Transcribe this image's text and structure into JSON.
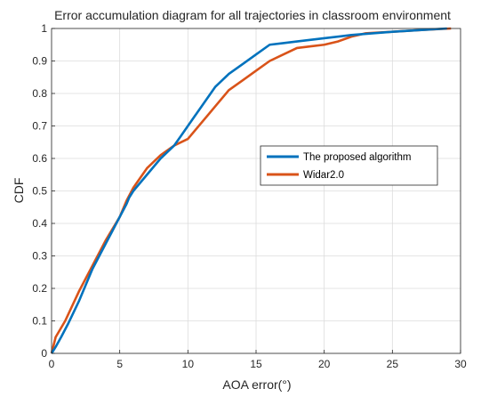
{
  "chart_data": {
    "type": "line",
    "title": "Error accumulation diagram for all trajectories in classroom environment",
    "xlabel": "AOA error(°)",
    "ylabel": "CDF",
    "xlim": [
      0,
      30
    ],
    "ylim": [
      0,
      1
    ],
    "xticks": [
      "0",
      "5",
      "10",
      "15",
      "20",
      "25",
      "30"
    ],
    "yticks": [
      "0",
      "0.1",
      "0.2",
      "0.3",
      "0.4",
      "0.5",
      "0.6",
      "0.7",
      "0.8",
      "0.9",
      "1"
    ],
    "grid": true,
    "legend_position": "center-right",
    "series": [
      {
        "name": "The proposed algorithm",
        "color": "#0072BD",
        "x": [
          0,
          0.3,
          0.7,
          1.2,
          2.0,
          3.0,
          4.0,
          5.0,
          5.5,
          5.7,
          6.0,
          7.0,
          8.0,
          9.0,
          9.5,
          10.0,
          10.5,
          11.0,
          12.0,
          13.0,
          14.0,
          15.0,
          16.0,
          17.0,
          18.0,
          20.0,
          22.0,
          25.0,
          27.0,
          29.0
        ],
        "y": [
          0,
          0.02,
          0.05,
          0.09,
          0.16,
          0.26,
          0.34,
          0.42,
          0.46,
          0.48,
          0.5,
          0.55,
          0.6,
          0.64,
          0.67,
          0.7,
          0.73,
          0.76,
          0.82,
          0.86,
          0.89,
          0.92,
          0.95,
          0.955,
          0.96,
          0.97,
          0.98,
          0.99,
          0.995,
          1.0
        ]
      },
      {
        "name": "Widar2.0",
        "color": "#D95319",
        "x": [
          0,
          0.3,
          1.0,
          2.0,
          3.0,
          4.0,
          5.0,
          5.5,
          6.0,
          7.0,
          8.0,
          9.0,
          10.0,
          11.0,
          12.0,
          13.0,
          14.0,
          15.0,
          16.0,
          17.0,
          18.0,
          19.0,
          20.0,
          21.0,
          22.0,
          22.5,
          23.0,
          25.0,
          27.0,
          29.3
        ],
        "y": [
          0,
          0.05,
          0.1,
          0.19,
          0.27,
          0.35,
          0.42,
          0.47,
          0.51,
          0.57,
          0.61,
          0.64,
          0.66,
          0.71,
          0.76,
          0.81,
          0.84,
          0.87,
          0.9,
          0.92,
          0.94,
          0.945,
          0.95,
          0.96,
          0.975,
          0.98,
          0.985,
          0.99,
          0.995,
          1.0
        ]
      }
    ]
  }
}
